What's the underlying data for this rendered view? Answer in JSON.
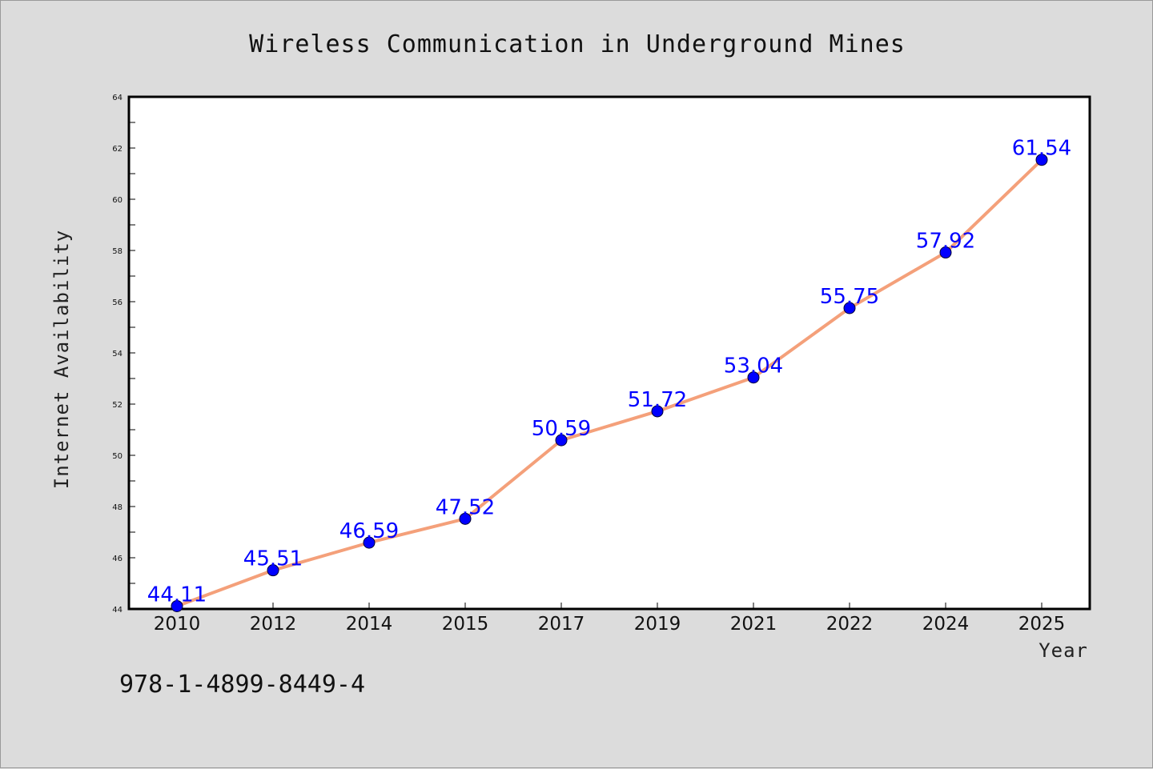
{
  "chart_data": {
    "type": "line",
    "title": "Wireless Communication in Underground Mines",
    "xlabel": "Year",
    "ylabel": "Internet Availability",
    "categories": [
      "2010",
      "2012",
      "2014",
      "2015",
      "2017",
      "2019",
      "2021",
      "2022",
      "2024",
      "2025"
    ],
    "series": [
      {
        "values": [
          44.11,
          45.51,
          46.59,
          47.52,
          50.59,
          51.72,
          53.04,
          55.75,
          57.92,
          61.54
        ],
        "labels": [
          "44.11",
          "45.51",
          "46.59",
          "47.52",
          "50.59",
          "51.72",
          "53.04",
          "55.75",
          "57.92",
          "61.54"
        ],
        "line_color": "#f4a07a",
        "marker_color": "#0000ff"
      }
    ],
    "ylim": [
      44,
      64
    ],
    "yticks": [
      "44",
      "46",
      "48",
      "50",
      "52",
      "54",
      "56",
      "58",
      "60",
      "62",
      "64"
    ],
    "grid": false,
    "legend": "none"
  },
  "footnote": "978-1-4899-8449-4",
  "colors": {
    "background": "#dcdcdc",
    "plot_area": "#ffffff",
    "line": "#f4a07a",
    "marker": "#0000ff",
    "data_label": "#0000ff"
  }
}
